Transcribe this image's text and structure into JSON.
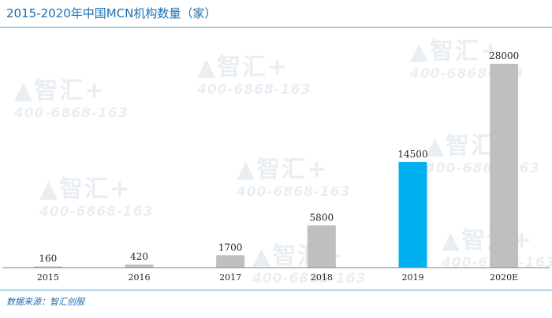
{
  "header": {
    "title": "2015-2020年中国MCN机构数量（家）"
  },
  "footer": {
    "source": "数据来源：智汇创服"
  },
  "watermark": {
    "logo": "▲智汇+",
    "phone": "400-6868-163"
  },
  "colors": {
    "bar": "#bfbfbf",
    "highlight": "#00b0f0",
    "axis": "#7f7f7f",
    "rule": "#4aa6d8",
    "title": "#1a6fb0"
  },
  "chart_data": {
    "type": "bar",
    "categories": [
      "2015",
      "2016",
      "2017",
      "2018",
      "2019",
      "2020E"
    ],
    "values": [
      160,
      420,
      1700,
      5800,
      14500,
      28000
    ],
    "highlight_index": 4,
    "title": "2015-2020年中国MCN机构数量（家）",
    "xlabel": "",
    "ylabel": "",
    "ylim": [
      0,
      28000
    ],
    "grid": false,
    "legend": "none"
  }
}
